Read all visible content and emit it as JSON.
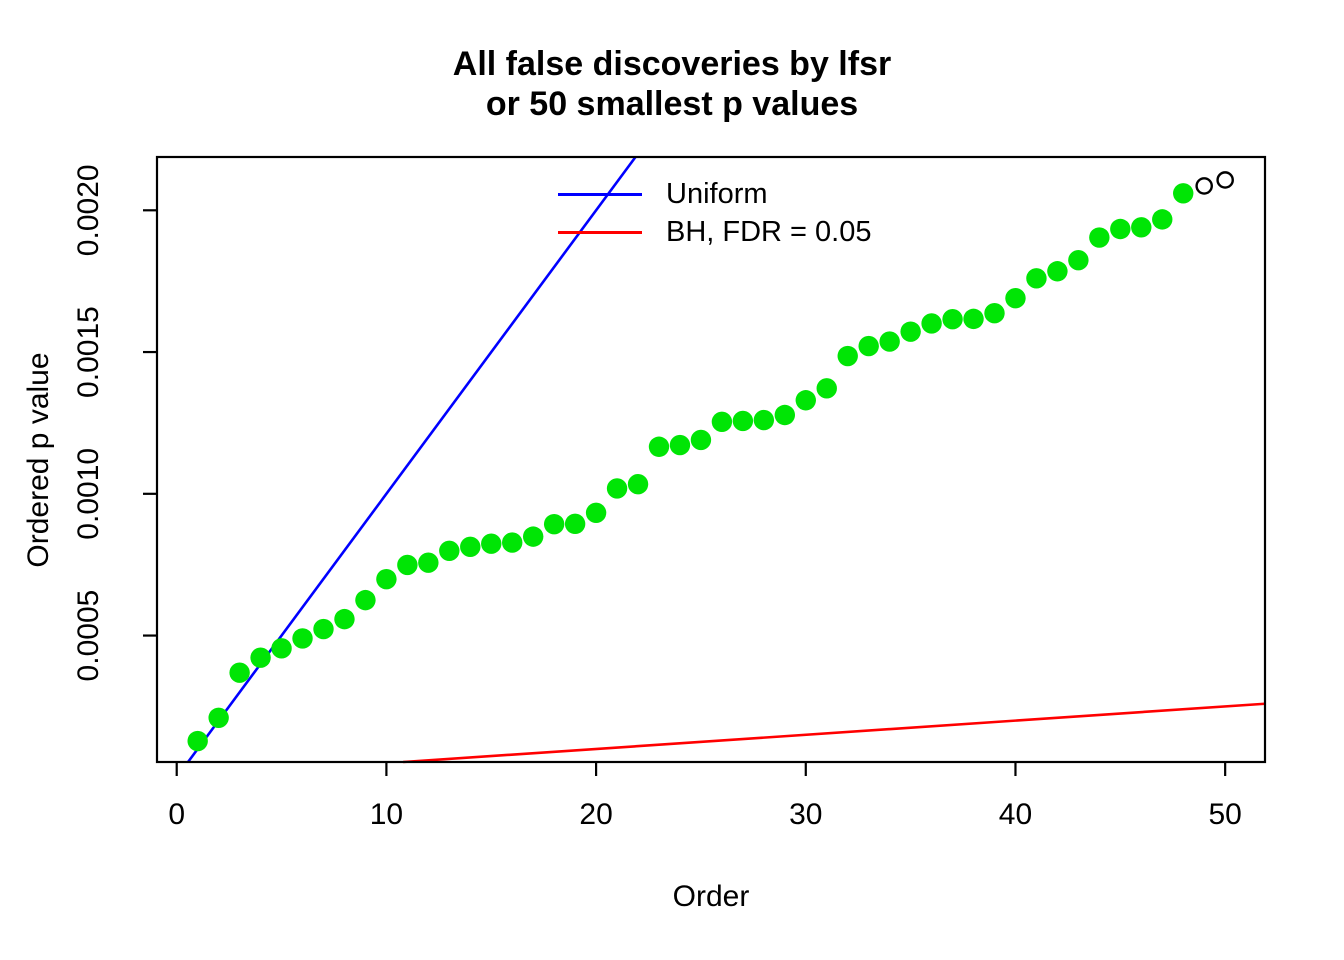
{
  "figure": {
    "title_line1": "All false discoveries by lfsr",
    "title_line2": "or 50 smallest p values",
    "xlabel": "Order",
    "ylabel": "Ordered p value"
  },
  "legend": {
    "items": [
      {
        "label": "Uniform",
        "color": "#0000ff"
      },
      {
        "label": "BH, FDR = 0.05",
        "color": "#ff0000"
      }
    ]
  },
  "chart_data": {
    "type": "scatter",
    "title": "All false discoveries by lfsr\nor 50 smallest p values",
    "xlabel": "Order",
    "ylabel": "Ordered p value",
    "xlim": [
      -0.94,
      51.9
    ],
    "ylim": [
      5.4e-05,
      0.002188
    ],
    "x_ticks": [
      0,
      10,
      20,
      30,
      40,
      50
    ],
    "x_tick_labels": [
      "0",
      "10",
      "20",
      "30",
      "40",
      "50"
    ],
    "y_ticks": [
      0.0005,
      0.001,
      0.0015,
      0.002
    ],
    "y_tick_labels": [
      "0.0005",
      "0.0010",
      "0.0015",
      "0.0020"
    ],
    "grid": false,
    "legend_position": "top-center-inside",
    "points": {
      "x": [
        1,
        2,
        3,
        4,
        5,
        6,
        7,
        8,
        9,
        10,
        11,
        12,
        13,
        14,
        15,
        16,
        17,
        18,
        19,
        20,
        21,
        22,
        23,
        24,
        25,
        26,
        27,
        28,
        29,
        30,
        31,
        32,
        33,
        34,
        35,
        36,
        37,
        38,
        39,
        40,
        41,
        42,
        43,
        44,
        45,
        46,
        47,
        48,
        49,
        50
      ],
      "y": [
        0.000128,
        0.00021,
        0.000369,
        0.000422,
        0.000455,
        0.00049,
        0.000523,
        0.000558,
        0.000625,
        0.000699,
        0.000749,
        0.000757,
        0.000799,
        0.000813,
        0.000824,
        0.000828,
        0.000849,
        0.000893,
        0.000894,
        0.000933,
        0.001019,
        0.001034,
        0.001166,
        0.001172,
        0.00119,
        0.001254,
        0.001257,
        0.00126,
        0.001278,
        0.00133,
        0.001372,
        0.001486,
        0.001521,
        0.001537,
        0.001572,
        0.001601,
        0.001616,
        0.001617,
        0.001637,
        0.00169,
        0.00176,
        0.001785,
        0.001824,
        0.001904,
        0.001934,
        0.00194,
        0.001968,
        0.00206,
        0.002086,
        0.002107
      ],
      "filled_color": "#00e505",
      "filled_radius": 10.2,
      "open_circle_orders": [
        49,
        50
      ],
      "open_radius": 7.6,
      "open_stroke_color": "#000000"
    },
    "lines": [
      {
        "name": "Uniform",
        "color": "#0000ff",
        "slope": 0.0001,
        "intercept": 0,
        "width": 2.6
      },
      {
        "name": "BH, FDR = 0.05",
        "color": "#ff0000",
        "slope": 5e-06,
        "intercept": 0,
        "width": 2.6
      }
    ]
  }
}
